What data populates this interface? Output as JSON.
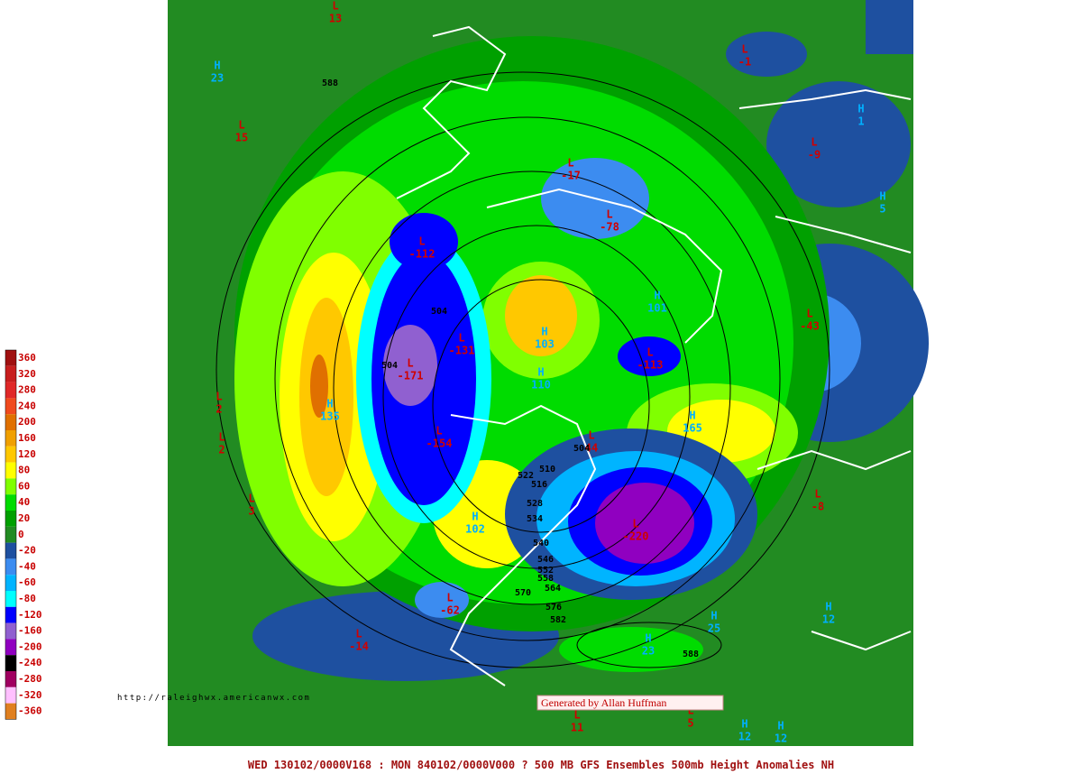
{
  "map": {
    "legend": [
      {
        "label": 360,
        "color": "#a01010"
      },
      {
        "label": 320,
        "color": "#c81e1e"
      },
      {
        "label": 280,
        "color": "#e02828"
      },
      {
        "label": 240,
        "color": "#f04a1e"
      },
      {
        "label": 200,
        "color": "#e07000"
      },
      {
        "label": 160,
        "color": "#f0a000"
      },
      {
        "label": 120,
        "color": "#ffc800"
      },
      {
        "label": 80,
        "color": "#ffff00"
      },
      {
        "label": 60,
        "color": "#80ff00"
      },
      {
        "label": 40,
        "color": "#00dc00"
      },
      {
        "label": 20,
        "color": "#00a000"
      },
      {
        "label": 0,
        "color": "#228b22"
      },
      {
        "label": -20,
        "color": "#1e50a0"
      },
      {
        "label": -40,
        "color": "#3c8cf0"
      },
      {
        "label": -60,
        "color": "#00b4ff"
      },
      {
        "label": -80,
        "color": "#00ffff"
      },
      {
        "label": -120,
        "color": "#0000ff"
      },
      {
        "label": -160,
        "color": "#9060d0"
      },
      {
        "label": -200,
        "color": "#9000c0"
      },
      {
        "label": -240,
        "color": "#000000"
      },
      {
        "label": -280,
        "color": "#a00060"
      },
      {
        "label": -320,
        "color": "#ffc0ff"
      },
      {
        "label": -360,
        "color": "#e08020"
      }
    ],
    "centers": [
      {
        "letter": "L",
        "value": 13
      },
      {
        "letter": "H",
        "value": 23
      },
      {
        "letter": "L",
        "value": 15
      },
      {
        "letter": "L",
        "value": -1
      },
      {
        "letter": "H",
        "value": 1
      },
      {
        "letter": "L",
        "value": -9
      },
      {
        "letter": "L",
        "value": -17
      },
      {
        "letter": "L",
        "value": -78
      },
      {
        "letter": "H",
        "value": 5
      },
      {
        "letter": "L",
        "value": -112
      },
      {
        "letter": "H",
        "value": 101
      },
      {
        "letter": "L",
        "value": -43
      },
      {
        "letter": "L",
        "value": -131
      },
      {
        "letter": "H",
        "value": 103
      },
      {
        "letter": "L",
        "value": -113
      },
      {
        "letter": "H",
        "value": 110
      },
      {
        "letter": "L",
        "value": -171
      },
      {
        "letter": "L",
        "value": 2
      },
      {
        "letter": "H",
        "value": 135
      },
      {
        "letter": "L",
        "value": -154
      },
      {
        "letter": "H",
        "value": 165
      },
      {
        "letter": "L",
        "value": 2
      },
      {
        "letter": "L",
        "value": 44
      },
      {
        "letter": "L",
        "value": 3
      },
      {
        "letter": "L",
        "value": -8
      },
      {
        "letter": "H",
        "value": 102
      },
      {
        "letter": "L",
        "value": -220
      },
      {
        "letter": "L",
        "value": -62
      },
      {
        "letter": "L",
        "value": -14
      },
      {
        "letter": "H",
        "value": 12
      },
      {
        "letter": "H",
        "value": 25
      },
      {
        "letter": "H",
        "value": 23
      },
      {
        "letter": "L",
        "value": 11
      },
      {
        "letter": "L",
        "value": 5
      },
      {
        "letter": "H",
        "value": 12
      },
      {
        "letter": "H",
        "value": 12
      }
    ],
    "contours": [
      588,
      504,
      504,
      504,
      522,
      516,
      510,
      528,
      534,
      540,
      546,
      552,
      558,
      564,
      570,
      576,
      582,
      588
    ],
    "url": "http://raleighwx.americanwx.com",
    "credit": "Generated by Allan Huffman",
    "footer": "WED 130102/0000V168 : MON 840102/0000V000  ? 500 MB GFS Ensembles 500mb Height Anomalies NH"
  }
}
